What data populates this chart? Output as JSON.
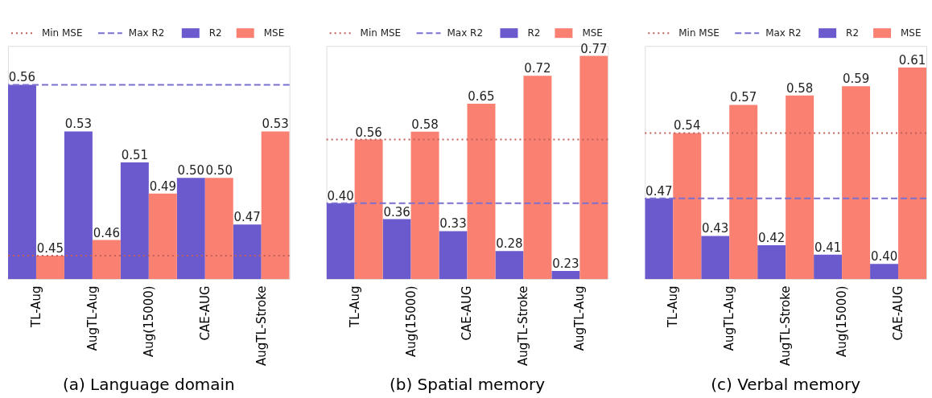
{
  "chart_data": [
    {
      "type": "bar",
      "title": "(a) Language domain",
      "categories": [
        "TL-Aug",
        "AugTL-Aug",
        "Aug(15000)",
        "CAE-AUG",
        "AugTL-Stroke"
      ],
      "series": [
        {
          "name": "R2",
          "color": "#6a5acd",
          "values": [
            0.56,
            0.53,
            0.51,
            0.5,
            0.47
          ],
          "value_labels": [
            "0.56",
            "0.53",
            "0.51",
            "0.50",
            "0.47"
          ]
        },
        {
          "name": "MSE",
          "color": "#fa8072",
          "values": [
            0.45,
            0.46,
            0.49,
            0.5,
            0.53
          ],
          "value_labels": [
            "0.45",
            "0.46",
            "0.49",
            "0.50",
            "0.53"
          ]
        }
      ],
      "ylim": [
        0.435,
        0.585
      ],
      "tick_labels": "x",
      "grid": "x",
      "legend": "top",
      "ref_lines": [
        {
          "axis": "y",
          "value": 0.45,
          "label": "Min MSE",
          "color": "#c0605a",
          "line_style": "dotted"
        },
        {
          "axis": "y",
          "value": 0.56,
          "label": "Max R2",
          "color": "#7a70d0",
          "line_style": "dashed"
        }
      ]
    },
    {
      "type": "bar",
      "title": "(b) Spatial memory",
      "categories": [
        "TL-Aug",
        "Aug(15000)",
        "CAE-AUG",
        "AugTL-Stroke",
        "AugTL-Aug"
      ],
      "series": [
        {
          "name": "R2",
          "color": "#6a5acd",
          "values": [
            0.4,
            0.36,
            0.33,
            0.28,
            0.23
          ],
          "value_labels": [
            "0.40",
            "0.36",
            "0.33",
            "0.28",
            "0.23"
          ]
        },
        {
          "name": "MSE",
          "color": "#fa8072",
          "values": [
            0.56,
            0.58,
            0.65,
            0.72,
            0.77
          ],
          "value_labels": [
            "0.56",
            "0.58",
            "0.65",
            "0.72",
            "0.77"
          ]
        }
      ],
      "ylim": [
        0.21,
        0.795
      ],
      "tick_labels": "x",
      "grid": "x",
      "legend": "top",
      "ref_lines": [
        {
          "axis": "y",
          "value": 0.56,
          "label": "Min MSE",
          "color": "#c0605a",
          "line_style": "dotted"
        },
        {
          "axis": "y",
          "value": 0.4,
          "label": "Max R2",
          "color": "#7a70d0",
          "line_style": "dashed"
        }
      ]
    },
    {
      "type": "bar",
      "title": "(c) Verbal memory",
      "categories": [
        "TL-Aug",
        "AugTL-Aug",
        "AugTL-Stroke",
        "Aug(15000)",
        "CAE-AUG"
      ],
      "series": [
        {
          "name": "R2",
          "color": "#6a5acd",
          "values": [
            0.47,
            0.43,
            0.42,
            0.41,
            0.4
          ],
          "value_labels": [
            "0.47",
            "0.43",
            "0.42",
            "0.41",
            "0.40"
          ]
        },
        {
          "name": "MSE",
          "color": "#fa8072",
          "values": [
            0.54,
            0.57,
            0.58,
            0.59,
            0.61
          ],
          "value_labels": [
            "0.54",
            "0.57",
            "0.58",
            "0.59",
            "0.61"
          ]
        }
      ],
      "ylim": [
        0.384,
        0.633
      ],
      "tick_labels": "x",
      "grid": "x",
      "legend": "top",
      "ref_lines": [
        {
          "axis": "y",
          "value": 0.54,
          "label": "Min MSE",
          "color": "#c0605a",
          "line_style": "dotted"
        },
        {
          "axis": "y",
          "value": 0.47,
          "label": "Max R2",
          "color": "#7a70d0",
          "line_style": "dashed"
        }
      ]
    }
  ]
}
